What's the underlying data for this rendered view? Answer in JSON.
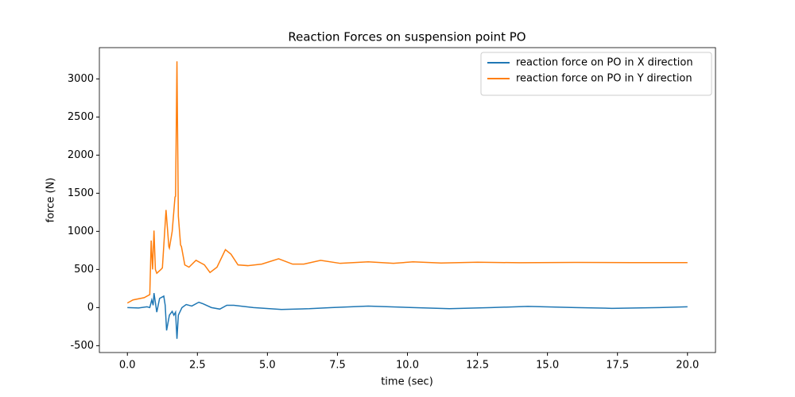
{
  "chart_data": {
    "type": "line",
    "title": "Reaction Forces on suspension point PO",
    "xlabel": "time (sec)",
    "ylabel": "force (N)",
    "xlim": [
      -1,
      21
    ],
    "xticks": [
      {
        "value": 0,
        "label": "0.0"
      },
      {
        "value": 2.5,
        "label": "2.5"
      },
      {
        "value": 5,
        "label": "5.0"
      },
      {
        "value": 7.5,
        "label": "7.5"
      },
      {
        "value": 10,
        "label": "10.0"
      },
      {
        "value": 12.5,
        "label": "12.5"
      },
      {
        "value": 15,
        "label": "15.0"
      },
      {
        "value": 17.5,
        "label": "17.5"
      },
      {
        "value": 20,
        "label": "20.0"
      }
    ],
    "ylim": [
      -590,
      3410
    ],
    "yticks": [
      -500,
      0,
      500,
      1000,
      1500,
      2000,
      2500,
      3000
    ],
    "legend": "upper right",
    "series": [
      {
        "name": "reaction force on PO in X direction",
        "color": "#1f77b4",
        "x": [
          0,
          0.4,
          0.7,
          0.8,
          0.87,
          0.92,
          0.95,
          1.05,
          1.15,
          1.3,
          1.35,
          1.4,
          1.5,
          1.6,
          1.66,
          1.72,
          1.77,
          1.82,
          1.95,
          2.1,
          2.3,
          2.55,
          2.7,
          3.0,
          3.3,
          3.55,
          3.8,
          4.5,
          5.5,
          6.5,
          7.3,
          8.6,
          10.2,
          11.5,
          13,
          14.3,
          16,
          17.3,
          19,
          20
        ],
        "values": [
          0,
          -5,
          10,
          0,
          100,
          30,
          190,
          -60,
          120,
          150,
          30,
          -300,
          -100,
          -50,
          -100,
          -60,
          -410,
          -100,
          0,
          40,
          20,
          70,
          50,
          0,
          -20,
          30,
          30,
          0,
          -25,
          -15,
          0,
          20,
          0,
          -15,
          0,
          15,
          0,
          -10,
          0,
          10
        ]
      },
      {
        "name": "reaction force on PO in Y direction",
        "color": "#ff7f0e",
        "x": [
          0,
          0.2,
          0.6,
          0.8,
          0.85,
          0.9,
          0.95,
          1.0,
          1.05,
          1.2,
          1.25,
          1.38,
          1.48,
          1.5,
          1.6,
          1.7,
          1.72,
          1.77,
          1.82,
          1.9,
          1.93,
          2.05,
          2.2,
          2.45,
          2.75,
          2.95,
          3.2,
          3.5,
          3.7,
          3.95,
          4.3,
          4.8,
          5.4,
          5.9,
          6.3,
          6.9,
          7.6,
          8.6,
          9.5,
          10.2,
          11.2,
          12.5,
          14,
          16,
          18,
          20
        ],
        "values": [
          60,
          100,
          130,
          170,
          880,
          500,
          1010,
          500,
          450,
          500,
          520,
          1280,
          800,
          780,
          1000,
          1450,
          1460,
          3230,
          1200,
          820,
          800,
          560,
          530,
          620,
          560,
          460,
          530,
          760,
          700,
          560,
          550,
          570,
          640,
          570,
          570,
          620,
          580,
          600,
          580,
          600,
          585,
          595,
          588,
          592,
          590,
          590
        ]
      }
    ]
  }
}
